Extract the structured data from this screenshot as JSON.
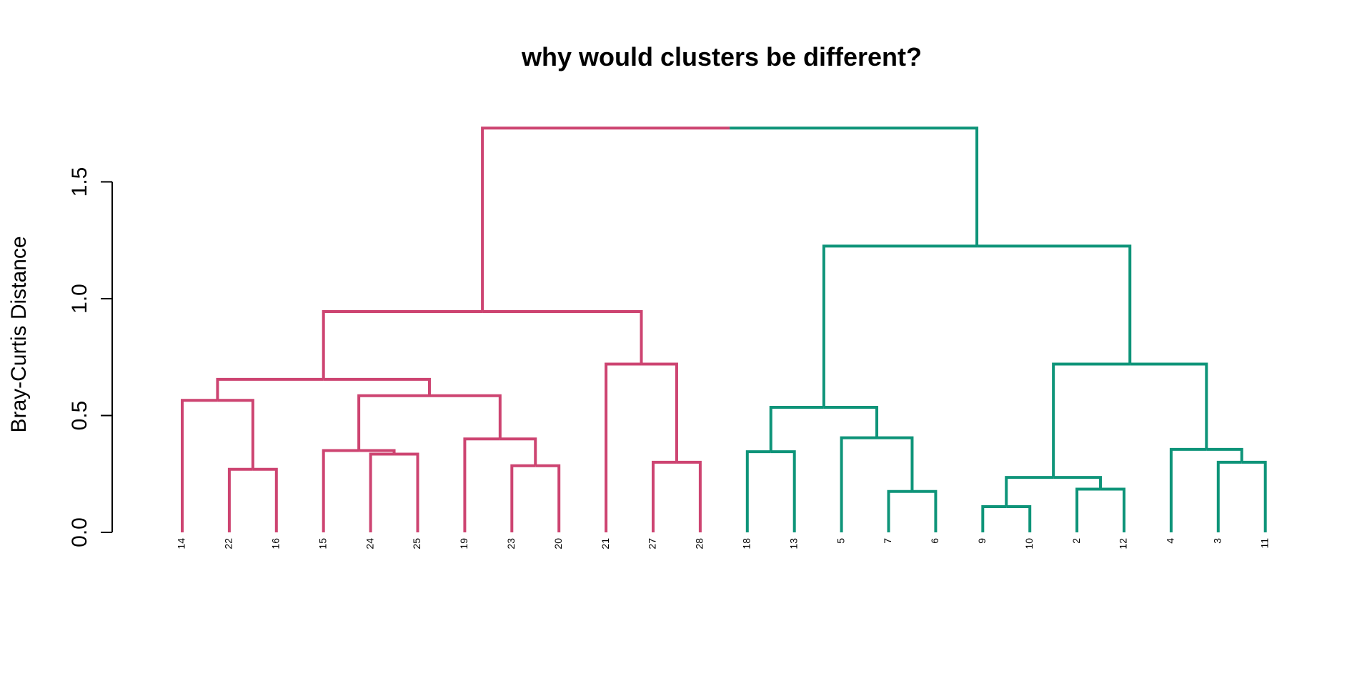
{
  "chart_data": {
    "type": "dendrogram",
    "title": "why would clusters be different?",
    "ylabel": "Bray-Curtis Distance",
    "ylim": [
      0,
      1.5
    ],
    "yticks": [
      0.0,
      0.5,
      1.0,
      1.5
    ],
    "ytick_labels": [
      "0.0",
      "0.5",
      "1.0",
      "1.5"
    ],
    "cluster_colors": {
      "A": "#CD4471",
      "B": "#0E9479"
    },
    "leaves": [
      {
        "label": "14",
        "cluster": "A"
      },
      {
        "label": "22",
        "cluster": "A"
      },
      {
        "label": "16",
        "cluster": "A"
      },
      {
        "label": "15",
        "cluster": "A"
      },
      {
        "label": "24",
        "cluster": "A"
      },
      {
        "label": "25",
        "cluster": "A"
      },
      {
        "label": "19",
        "cluster": "A"
      },
      {
        "label": "23",
        "cluster": "A"
      },
      {
        "label": "20",
        "cluster": "A"
      },
      {
        "label": "21",
        "cluster": "A"
      },
      {
        "label": "27",
        "cluster": "A"
      },
      {
        "label": "28",
        "cluster": "A"
      },
      {
        "label": "18",
        "cluster": "B"
      },
      {
        "label": "13",
        "cluster": "B"
      },
      {
        "label": "5",
        "cluster": "B"
      },
      {
        "label": "7",
        "cluster": "B"
      },
      {
        "label": "6",
        "cluster": "B"
      },
      {
        "label": "9",
        "cluster": "B"
      },
      {
        "label": "10",
        "cluster": "B"
      },
      {
        "label": "2",
        "cluster": "B"
      },
      {
        "label": "12",
        "cluster": "B"
      },
      {
        "label": "4",
        "cluster": "B"
      },
      {
        "label": "3",
        "cluster": "B"
      },
      {
        "label": "11",
        "cluster": "B"
      }
    ],
    "merges": [
      {
        "id": "m1",
        "left": "22",
        "right": "16",
        "height": 0.27
      },
      {
        "id": "m2",
        "left": "14",
        "right": "m1",
        "height": 0.565
      },
      {
        "id": "m3",
        "left": "24",
        "right": "25",
        "height": 0.335
      },
      {
        "id": "m4",
        "left": "15",
        "right": "m3",
        "height": 0.35
      },
      {
        "id": "m5",
        "left": "23",
        "right": "20",
        "height": 0.285
      },
      {
        "id": "m6",
        "left": "19",
        "right": "m5",
        "height": 0.4
      },
      {
        "id": "m7",
        "left": "m4",
        "right": "m6",
        "height": 0.585
      },
      {
        "id": "m8",
        "left": "m2",
        "right": "m7",
        "height": 0.655
      },
      {
        "id": "m9",
        "left": "27",
        "right": "28",
        "height": 0.3
      },
      {
        "id": "m10",
        "left": "21",
        "right": "m9",
        "height": 0.72
      },
      {
        "id": "m11",
        "left": "m8",
        "right": "m10",
        "height": 0.945
      },
      {
        "id": "m12",
        "left": "18",
        "right": "13",
        "height": 0.345
      },
      {
        "id": "m13",
        "left": "7",
        "right": "6",
        "height": 0.175
      },
      {
        "id": "m14",
        "left": "5",
        "right": "m13",
        "height": 0.405
      },
      {
        "id": "m15",
        "left": "m12",
        "right": "m14",
        "height": 0.535
      },
      {
        "id": "m16",
        "left": "9",
        "right": "10",
        "height": 0.11
      },
      {
        "id": "m17",
        "left": "2",
        "right": "12",
        "height": 0.185
      },
      {
        "id": "m18",
        "left": "m16",
        "right": "m17",
        "height": 0.235
      },
      {
        "id": "m19",
        "left": "3",
        "right": "11",
        "height": 0.3
      },
      {
        "id": "m20",
        "left": "4",
        "right": "m19",
        "height": 0.355
      },
      {
        "id": "m21",
        "left": "m18",
        "right": "m20",
        "height": 0.72
      },
      {
        "id": "m22",
        "left": "m15",
        "right": "m21",
        "height": 1.225
      },
      {
        "id": "m23",
        "left": "m11",
        "right": "m22",
        "height": 1.73
      }
    ]
  }
}
